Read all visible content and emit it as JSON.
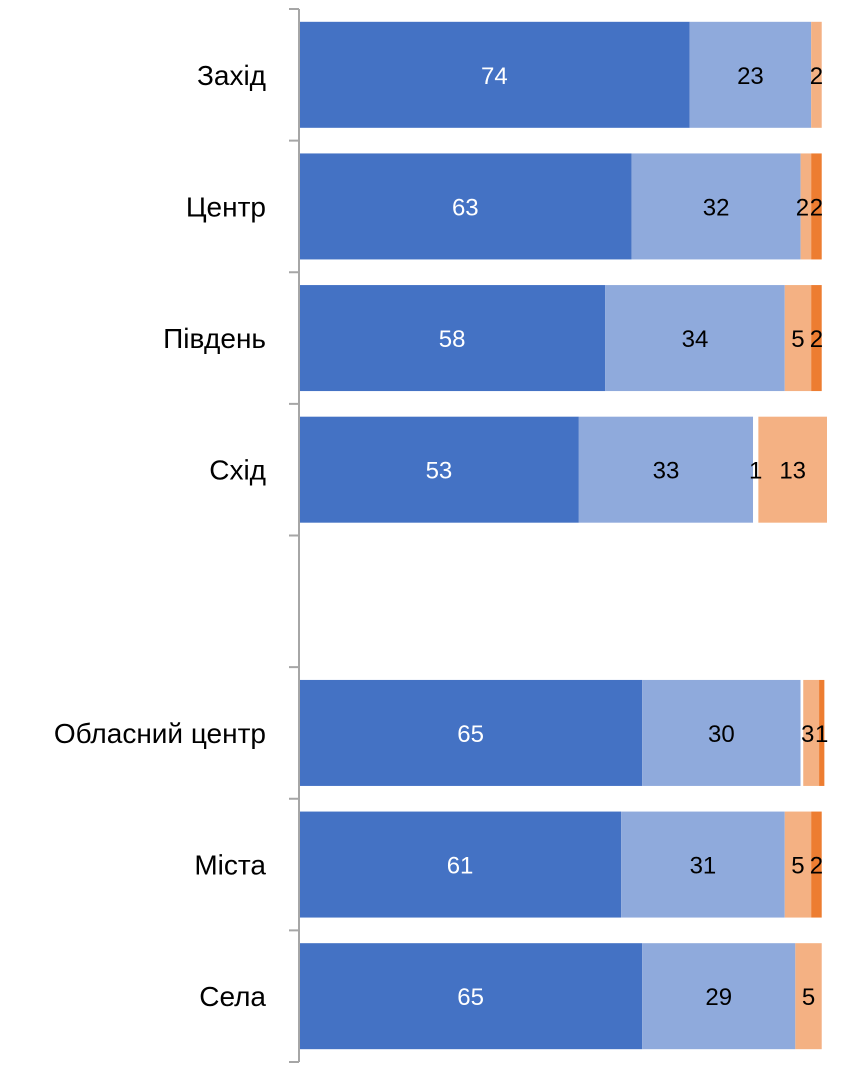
{
  "chart_data": {
    "type": "bar",
    "orientation": "horizontal",
    "stacked": true,
    "categories": [
      "Захід",
      "Центр",
      "Південь",
      "Схід",
      "",
      "Обласний центр",
      "Міста",
      "Села"
    ],
    "series": [
      {
        "color": "#4472C4",
        "values": [
          74,
          63,
          58,
          53,
          null,
          65,
          61,
          65
        ],
        "labels": [
          "74",
          "63",
          "58",
          "53",
          "",
          "65",
          "61",
          "65"
        ],
        "label_color": "#ffffff"
      },
      {
        "color": "#8FAADC",
        "values": [
          23,
          32,
          34,
          33,
          null,
          30,
          31,
          29
        ],
        "labels": [
          "23",
          "32",
          "34",
          "33",
          "",
          "30",
          "31",
          "29"
        ],
        "label_color": "#000000"
      },
      {
        "color": "#ffffff",
        "values": [
          0,
          0,
          0,
          1,
          null,
          0.5,
          0,
          0
        ],
        "labels": [
          "",
          "",
          "",
          "1",
          "",
          "",
          "",
          ""
        ],
        "label_color": "#000000"
      },
      {
        "color": "#F4B183",
        "values": [
          2,
          2,
          5,
          13,
          null,
          3,
          5,
          5
        ],
        "labels": [
          "2",
          "2",
          "5",
          "13",
          "",
          "3",
          "5",
          "5"
        ],
        "label_color": "#000000"
      },
      {
        "color": "#ED7D31",
        "values": [
          0,
          2,
          2,
          0,
          null,
          1,
          2,
          0
        ],
        "labels": [
          "",
          "2",
          "2",
          "",
          "",
          "1",
          "2",
          ""
        ],
        "label_color": "#000000"
      }
    ],
    "xlim": [
      0,
      100
    ],
    "legend": "none",
    "grid": false,
    "title": "",
    "xlabel": "",
    "ylabel": ""
  }
}
